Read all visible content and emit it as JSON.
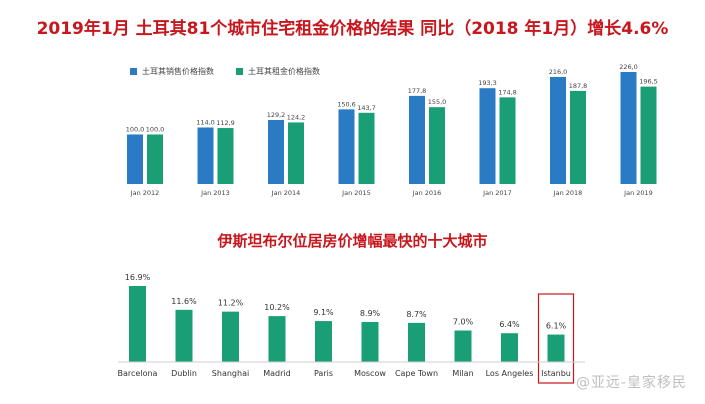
{
  "title_top": "2019年1月 土耳其81个城市住宅租金价格的结果 同比（2018 年1月）增长4.6%",
  "title_bottom": "伊斯坦布尔位居房价增幅最快的十大城市",
  "watermark": "@亚远-皇家移民",
  "colors": {
    "title": "#c8161d",
    "blue": "#2a7bc3",
    "green": "#1a9e76",
    "highlight": "#c8161d"
  },
  "chart_data": [
    {
      "type": "bar",
      "categories": [
        "Jan 2012",
        "Jan 2013",
        "Jan 2014",
        "Jan 2015",
        "Jan 2016",
        "Jan 2017",
        "Jan 2018",
        "Jan 2019"
      ],
      "series": [
        {
          "name": "土耳其销售价格指数",
          "values": [
            100.0,
            114.0,
            129.2,
            150.6,
            177.8,
            193.3,
            216.0,
            226.0
          ],
          "labels": [
            "100,0",
            "114,0",
            "129,2",
            "150,6",
            "177,8",
            "193,3",
            "216,0",
            "226,0"
          ],
          "color": "#2a7bc3"
        },
        {
          "name": "土耳其租金价格指数",
          "values": [
            100.0,
            112.9,
            124.2,
            143.7,
            155.0,
            174.8,
            187.8,
            196.5
          ],
          "labels": [
            "100,0",
            "112,9",
            "124,2",
            "143,7",
            "155,0",
            "174,8",
            "187,8",
            "196,5"
          ],
          "color": "#1a9e76"
        }
      ],
      "ylim": [
        0,
        230
      ],
      "legend": "top-left"
    },
    {
      "type": "bar",
      "categories": [
        "Barcelona",
        "Dublin",
        "Shanghai",
        "Madrid",
        "Paris",
        "Moscow",
        "Cape Town",
        "Milan",
        "Los Angeles",
        "Istanbu"
      ],
      "values": [
        16.9,
        11.6,
        11.2,
        10.2,
        9.1,
        8.9,
        8.7,
        7.0,
        6.4,
        6.1
      ],
      "labels": [
        "16.9%",
        "11.6%",
        "11.2%",
        "10.2%",
        "9.1%",
        "8.9%",
        "8.7%",
        "7.0%",
        "6.4%",
        "6.1%"
      ],
      "highlighted": "Istanbu",
      "color": "#1a9e76",
      "ylim": [
        0,
        17
      ]
    }
  ]
}
